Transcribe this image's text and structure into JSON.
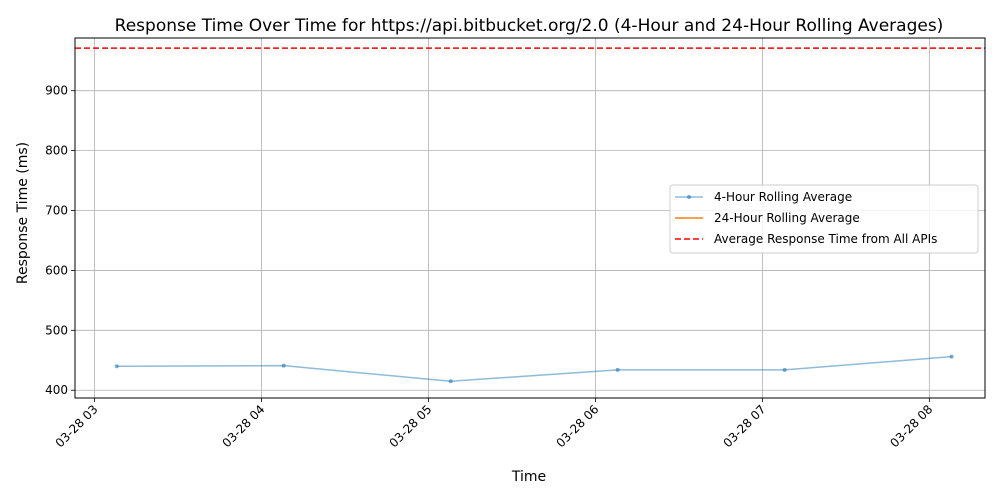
{
  "chart_data": {
    "type": "line",
    "title": "Response Time Over Time for https://api.bitbucket.org/2.0 (4-Hour and 24-Hour Rolling Averages)",
    "xlabel": "Time",
    "ylabel": "Response Time (ms)",
    "x_tick_labels": [
      "03-28 03",
      "03-28 04",
      "03-28 05",
      "03-28 06",
      "03-28 07",
      "03-28 08"
    ],
    "x_tick_values": [
      "03-28 03:00",
      "03-28 04:00",
      "03-28 05:00",
      "03-28 06:00",
      "03-28 07:00",
      "03-28 08:00"
    ],
    "xlim": [
      "03-28 02:53",
      "03-28 08:20"
    ],
    "y_ticks": [
      400,
      500,
      600,
      700,
      800,
      900
    ],
    "ylim": [
      387,
      988
    ],
    "grid": true,
    "legend_position": "center-right",
    "series": [
      {
        "name": "4-Hour Rolling Average",
        "color": "#1f77b4",
        "marker": "dot",
        "x": [
          "03-28 03:08",
          "03-28 04:08",
          "03-28 05:08",
          "03-28 06:08",
          "03-28 07:08",
          "03-28 08:08"
        ],
        "values": [
          440,
          441,
          415,
          434,
          434,
          456
        ]
      },
      {
        "name": "24-Hour Rolling Average",
        "color": "#ff7f0e",
        "x": [],
        "values": []
      }
    ],
    "hlines": [
      {
        "name": "Average Response Time from All APIs",
        "value": 971,
        "color": "#ff0000",
        "style": "dashed"
      }
    ]
  }
}
